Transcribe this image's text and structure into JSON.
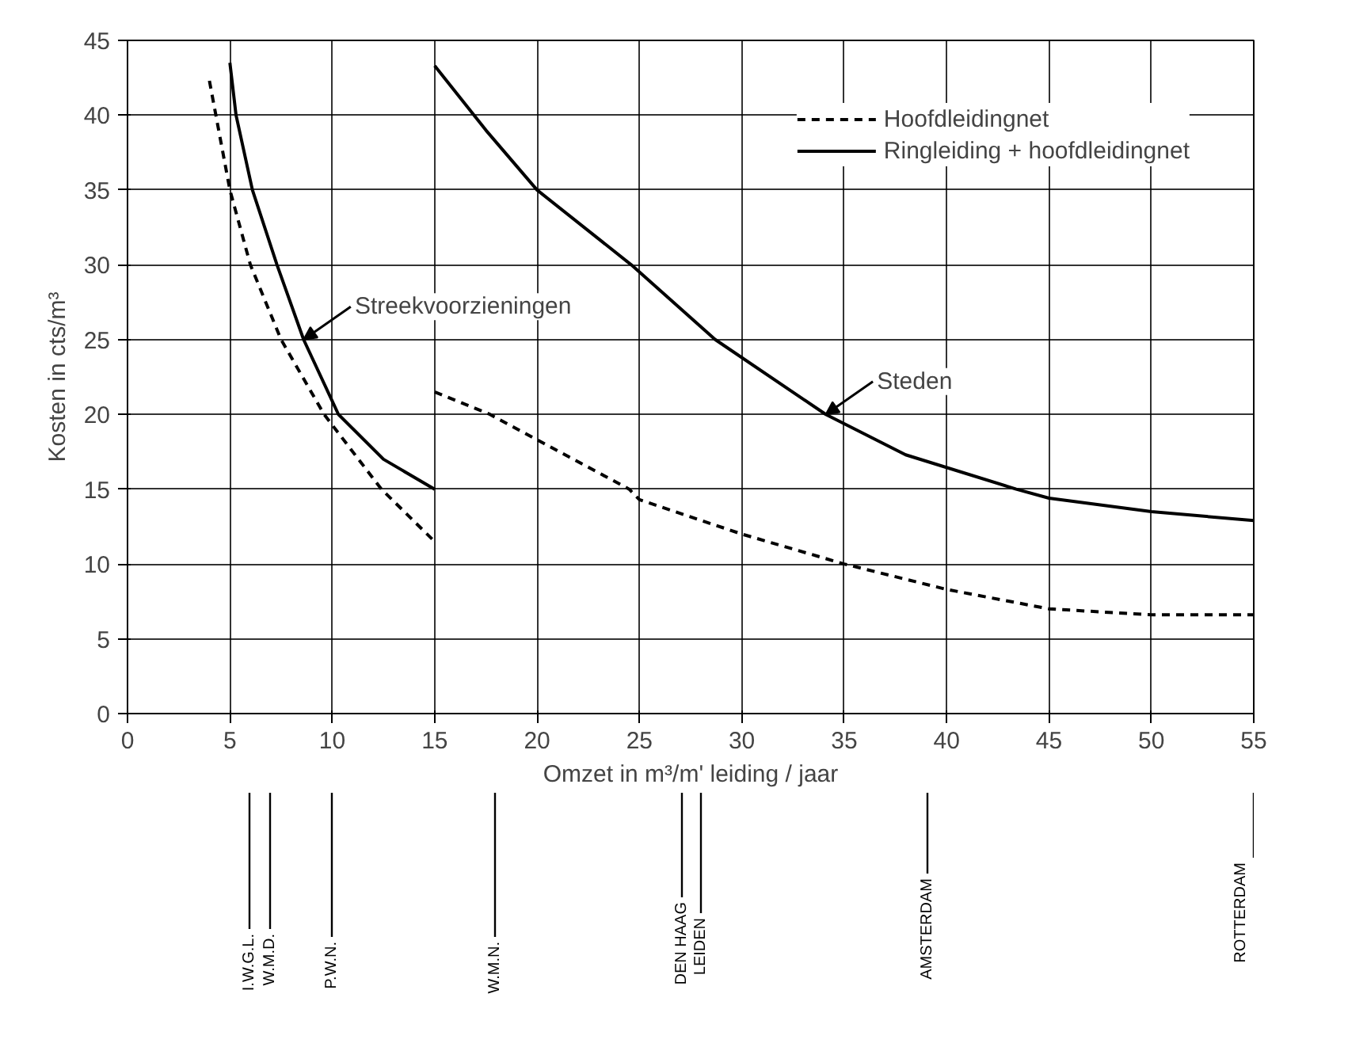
{
  "chart_data": {
    "type": "line",
    "xlabel": "Omzet in m³/m' leiding / jaar",
    "ylabel": "Kosten in cts/m³",
    "xlim": [
      0,
      55
    ],
    "ylim": [
      0,
      45
    ],
    "xticks": [
      0,
      5,
      10,
      15,
      20,
      25,
      30,
      35,
      40,
      45,
      50,
      55
    ],
    "yticks": [
      0,
      5,
      10,
      15,
      20,
      25,
      30,
      35,
      40,
      45
    ],
    "grid": true,
    "legend": "top right",
    "marker": "none",
    "series": [
      {
        "name": "Hoofdleidingnet",
        "color": "#000000",
        "line_style": "dashed",
        "x": [
          4,
          5,
          6,
          7.5,
          9.6,
          12.4,
          15
        ],
        "values": [
          42.3,
          35,
          30,
          25,
          20,
          15,
          11.5
        ]
      },
      {
        "name": "Ringleiding + hoofdleidingnet",
        "color": "#000000",
        "line_style": "solid",
        "x": [
          5,
          5.3,
          6.1,
          7.3,
          8.6,
          10.3,
          12.5,
          15
        ],
        "values": [
          43.5,
          40,
          35,
          30,
          25,
          20,
          17,
          15
        ]
      },
      {
        "color": "#000000",
        "line_style": "dashed",
        "x": [
          15,
          17.7,
          20,
          24.5,
          25,
          30,
          35,
          40,
          45,
          50,
          55
        ],
        "values": [
          21.5,
          20,
          18.3,
          15,
          14.3,
          12,
          10,
          8.3,
          7,
          6.6,
          6.6
        ]
      },
      {
        "color": "#000000",
        "line_style": "solid",
        "x": [
          15,
          17.5,
          20,
          24.6,
          28.7,
          34.1,
          38,
          43.4,
          45,
          50,
          55
        ],
        "values": [
          43.3,
          39,
          35,
          30,
          25,
          20,
          17.3,
          15,
          14.4,
          13.5,
          12.9
        ]
      }
    ],
    "annotations": [
      {
        "text": "Streekvoorzieningen",
        "x": 8.6,
        "y": 25
      },
      {
        "text": "Steden",
        "x": 34.1,
        "y": 20
      },
      "I.W.G.L.",
      "W.M.D.",
      "P.W.N.",
      "W.M.N.",
      "DEN HAAG",
      "LEIDEN",
      "AMSTERDAM",
      "ROTTERDAM"
    ]
  }
}
